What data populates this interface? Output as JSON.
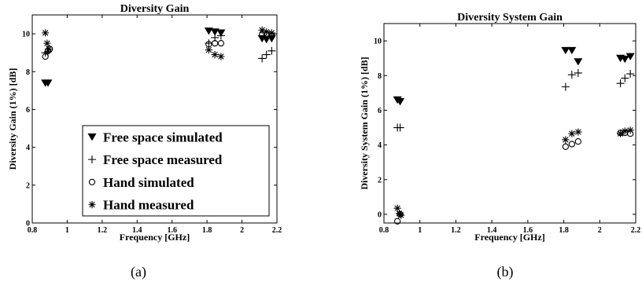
{
  "captions": [
    "(a)",
    "(b)"
  ],
  "chart_data": [
    {
      "type": "scatter",
      "title": "Diversity Gain",
      "xlabel": "Frequency [GHz]",
      "ylabel": "Diversity Gain (1%) [dB]",
      "xlim": [
        0.8,
        2.2
      ],
      "ylim": [
        0,
        11
      ],
      "xticks": [
        0.8,
        1,
        1.2,
        1.4,
        1.6,
        1.8,
        2,
        2.2
      ],
      "xtick_labels": [
        "0.8",
        "1",
        "1.2",
        "1.4",
        "1.6",
        "1.8",
        "2",
        "2.2"
      ],
      "yticks": [
        0,
        2,
        4,
        6,
        8,
        10
      ],
      "ytick_labels": [
        "0",
        "2",
        "4",
        "6",
        "8",
        "10"
      ],
      "grid": false,
      "legend": "bottom-right",
      "series": [
        {
          "name": "Free space simulated",
          "marker": "triangle-down",
          "x": [
            0.875,
            0.89,
            1.81,
            1.845,
            1.88,
            2.115,
            2.14,
            2.17
          ],
          "y": [
            7.4,
            7.4,
            10.15,
            10.1,
            10.05,
            9.75,
            9.7,
            9.75
          ]
        },
        {
          "name": "Free space measured",
          "marker": "plus",
          "x": [
            0.875,
            0.89,
            1.81,
            1.845,
            1.88,
            2.115,
            2.14,
            2.17
          ],
          "y": [
            9.0,
            9.05,
            9.5,
            9.8,
            9.9,
            8.7,
            8.9,
            9.1
          ]
        },
        {
          "name": "Hand simulated",
          "marker": "circle",
          "x": [
            0.875,
            0.89,
            0.9,
            1.81,
            1.845,
            1.88,
            2.115,
            2.14,
            2.17
          ],
          "y": [
            8.8,
            9.1,
            9.2,
            9.45,
            9.5,
            9.5,
            9.95,
            10.0,
            9.9
          ]
        },
        {
          "name": "Hand measured",
          "marker": "asterisk",
          "x": [
            0.875,
            0.885,
            0.895,
            1.81,
            1.845,
            1.88,
            2.115,
            2.14,
            2.17
          ],
          "y": [
            10.05,
            9.5,
            9.2,
            9.15,
            8.9,
            8.8,
            10.2,
            10.1,
            10.05
          ]
        }
      ]
    },
    {
      "type": "scatter",
      "title": "Diversity System Gain",
      "xlabel": "Frequency [GHz]",
      "ylabel": "Diversity System Gain (1%) [dB]",
      "xlim": [
        0.8,
        2.2
      ],
      "ylim": [
        -0.5,
        11
      ],
      "xticks": [
        0.8,
        1,
        1.2,
        1.4,
        1.6,
        1.8,
        2,
        2.2
      ],
      "xtick_labels": [
        "0.8",
        "1",
        "1.2",
        "1.4",
        "1.6",
        "1.8",
        "2",
        "2.2"
      ],
      "yticks": [
        0,
        2,
        4,
        6,
        8,
        10
      ],
      "ytick_labels": [
        "0",
        "2",
        "4",
        "6",
        "8",
        "10"
      ],
      "grid": false,
      "series": [
        {
          "name": "Free space simulated",
          "marker": "triangle-down",
          "x": [
            0.875,
            0.89,
            1.81,
            1.845,
            1.88,
            2.115,
            2.14,
            2.17
          ],
          "y": [
            6.6,
            6.5,
            9.45,
            9.45,
            8.8,
            9.0,
            8.95,
            9.1
          ]
        },
        {
          "name": "Free space measured",
          "marker": "plus",
          "x": [
            0.875,
            0.89,
            1.81,
            1.845,
            1.88,
            2.115,
            2.14,
            2.17
          ],
          "y": [
            5.0,
            5.0,
            7.35,
            8.05,
            8.15,
            7.55,
            7.85,
            8.1
          ]
        },
        {
          "name": "Hand simulated",
          "marker": "circle",
          "x": [
            0.875,
            0.89,
            1.81,
            1.845,
            1.88,
            2.115,
            2.14,
            2.17
          ],
          "y": [
            -0.4,
            0.0,
            3.9,
            4.05,
            4.2,
            4.7,
            4.7,
            4.65
          ]
        },
        {
          "name": "Hand measured",
          "marker": "asterisk",
          "x": [
            0.875,
            0.885,
            0.895,
            1.81,
            1.845,
            1.88,
            2.115,
            2.14,
            2.17
          ],
          "y": [
            0.35,
            0.05,
            -0.05,
            4.3,
            4.65,
            4.75,
            4.65,
            4.8,
            4.85
          ]
        }
      ]
    }
  ]
}
